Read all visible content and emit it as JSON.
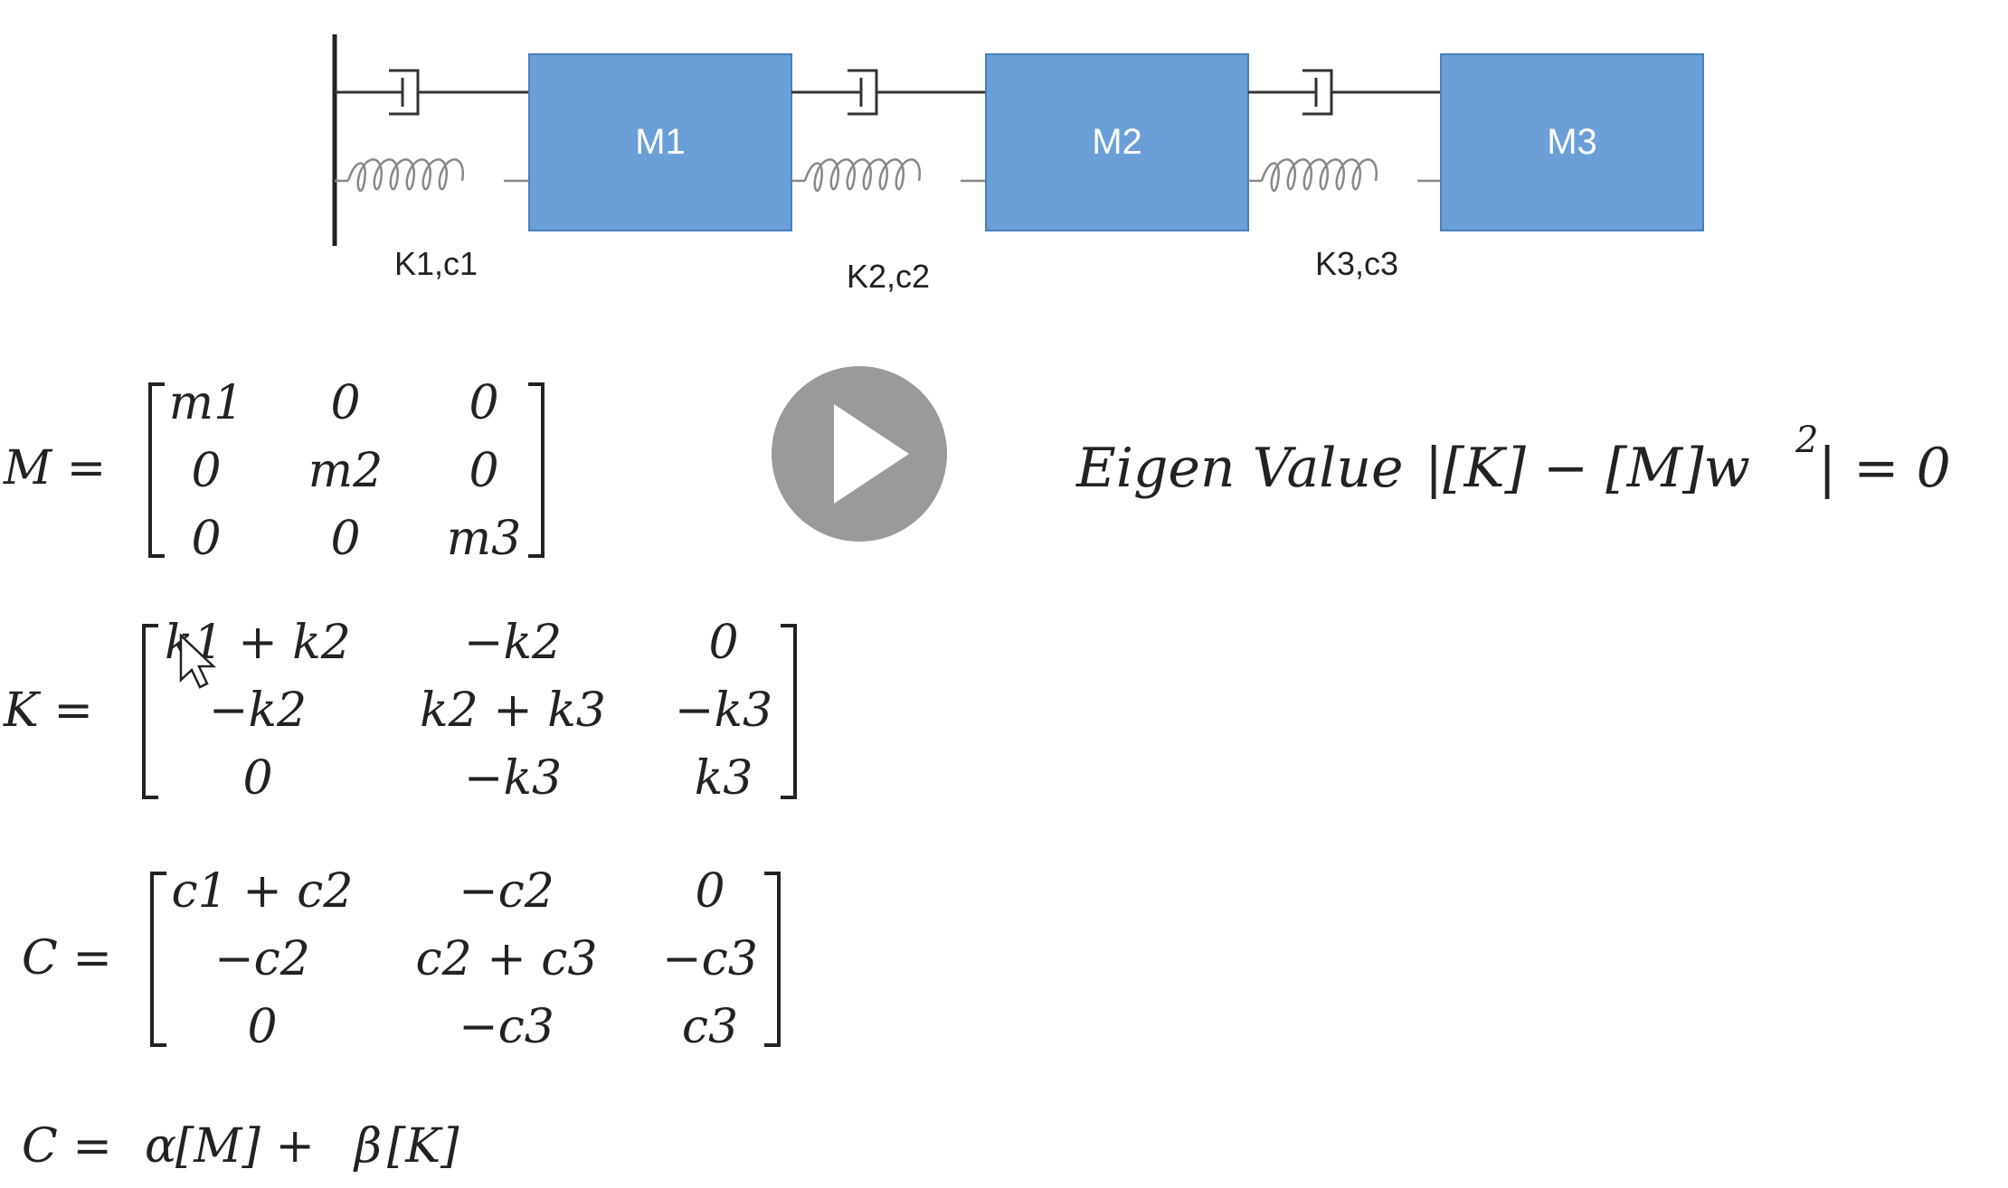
{
  "diagram": {
    "masses": [
      {
        "label": "M1"
      },
      {
        "label": "M2"
      },
      {
        "label": "M3"
      }
    ],
    "links": [
      {
        "label": "K1,c1"
      },
      {
        "label": "K2,c2"
      },
      {
        "label": "K3,c3"
      }
    ],
    "colors": {
      "mass_fill": "#6a9fd8",
      "mass_stroke": "#4a7fb8",
      "mass_text": "#ffffff",
      "line": "#333333",
      "spring": "#888888"
    }
  },
  "equations": {
    "mass_matrix": {
      "lhs": "M =",
      "rows": [
        [
          "m1",
          "0",
          "0"
        ],
        [
          "0",
          "m2",
          "0"
        ],
        [
          "0",
          "0",
          "m3"
        ]
      ]
    },
    "stiffness_matrix": {
      "lhs": "K =",
      "rows": [
        [
          "k1 + k2",
          "−k2",
          "0"
        ],
        [
          "−k2",
          "k2 + k3",
          "−k3"
        ],
        [
          "0",
          "−k3",
          "k3"
        ]
      ]
    },
    "damping_matrix": {
      "lhs": "C =",
      "rows": [
        [
          "c1 + c2",
          "−c2",
          "0"
        ],
        [
          "−c2",
          "c2 + c3",
          "−c3"
        ],
        [
          "0",
          "−c3",
          "c3"
        ]
      ]
    },
    "rayleigh": {
      "lhs": "C =",
      "alpha": "α",
      "m_term": "[M] +",
      "beta": "β",
      "k_term": "[K]"
    },
    "eigen": {
      "label": "Eigen Value",
      "expr": "|[K] − [M]w",
      "exponent": "2",
      "rhs": "| = 0"
    }
  },
  "player": {
    "play_icon": "play-icon",
    "button_color": "#9a9a9a"
  }
}
